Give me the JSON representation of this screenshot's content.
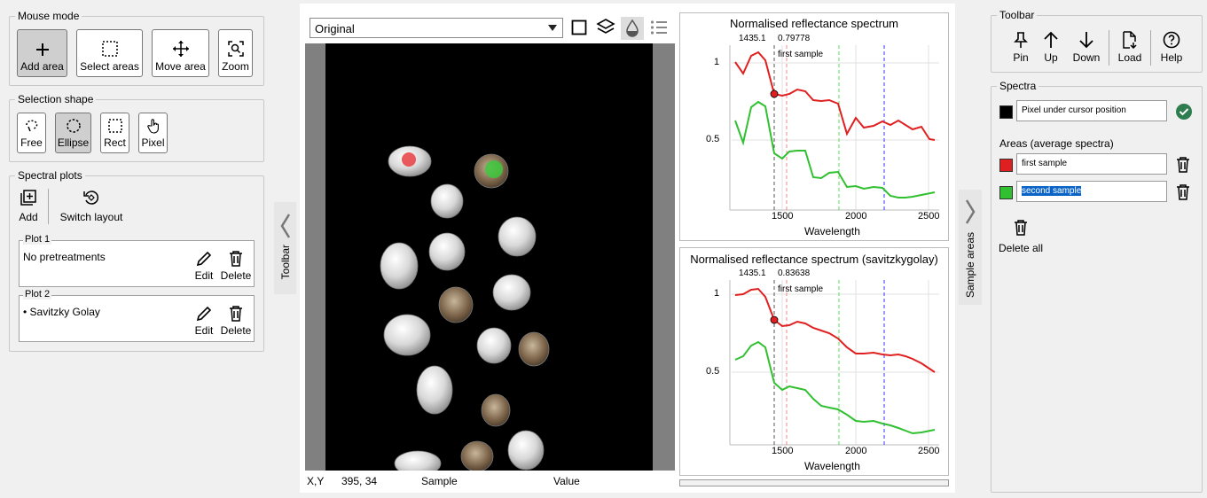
{
  "mouse_mode": {
    "title": "Mouse mode",
    "buttons": [
      {
        "label": "Add area",
        "icon": "plus-icon",
        "active": true
      },
      {
        "label": "Select areas",
        "icon": "dotted-rect-icon",
        "active": false
      },
      {
        "label": "Move area",
        "icon": "move-arrows-icon",
        "active": false
      },
      {
        "label": "Zoom",
        "icon": "zoom-icon",
        "active": false
      }
    ]
  },
  "selection_shape": {
    "title": "Selection shape",
    "buttons": [
      {
        "label": "Free",
        "icon": "lasso-icon",
        "active": false
      },
      {
        "label": "Ellipse",
        "icon": "ellipse-icon",
        "active": true
      },
      {
        "label": "Rect",
        "icon": "rect-icon",
        "active": false
      },
      {
        "label": "Pixel",
        "icon": "hand-pointer-icon",
        "active": false
      }
    ]
  },
  "spectral_plots": {
    "title": "Spectral plots",
    "add_label": "Add",
    "switch_layout_label": "Switch layout",
    "plots": [
      {
        "title": "Plot 1",
        "description": "No pretreatments",
        "edit": "Edit",
        "delete": "Delete"
      },
      {
        "title": "Plot 2",
        "description": "• Savitzky Golay",
        "edit": "Edit",
        "delete": "Delete"
      }
    ]
  },
  "left_toolbar_tab": "Toolbar",
  "image_view": {
    "dropdown_value": "Original",
    "status": {
      "xy_label": "X,Y",
      "xy_value": "395, 34",
      "sample_label": "Sample",
      "value_label": "Value"
    }
  },
  "plots": [
    {
      "title": "Normalised reflectance spectrum",
      "cursor_x": "1435.1",
      "cursor_y": "0.79778",
      "annotation": "first sample",
      "xlabel": "Wavelength",
      "xticks": [
        "1500",
        "2000",
        "2500"
      ],
      "yticks": [
        "1",
        "0.5"
      ]
    },
    {
      "title": "Normalised reflectance spectrum (savitzkygolay)",
      "cursor_x": "1435.1",
      "cursor_y": "0.83638",
      "annotation": "first sample",
      "xlabel": "Wavelength",
      "xticks": [
        "1500",
        "2000",
        "2500"
      ],
      "yticks": [
        "1",
        "0.5"
      ]
    }
  ],
  "sample_areas_tab": "Sample areas",
  "right_toolbar": {
    "title": "Toolbar",
    "buttons": [
      {
        "label": "Pin",
        "icon": "pin-icon"
      },
      {
        "label": "Up",
        "icon": "arrow-up-icon"
      },
      {
        "label": "Down",
        "icon": "arrow-down-icon"
      },
      {
        "label": "Load",
        "icon": "load-file-icon"
      },
      {
        "label": "Help",
        "icon": "help-icon"
      }
    ]
  },
  "spectra": {
    "title": "Spectra",
    "cursor_item": {
      "label": "Pixel under cursor position",
      "color": "#000000"
    },
    "areas_title": "Areas (average spectra)",
    "areas": [
      {
        "label": "first sample",
        "color": "#e02020"
      },
      {
        "label": "second sample",
        "color": "#30c030"
      }
    ],
    "delete_all": "Delete all"
  },
  "colors": {
    "red": "#e02020",
    "green": "#30c030",
    "accent": "#2e7d4f"
  }
}
